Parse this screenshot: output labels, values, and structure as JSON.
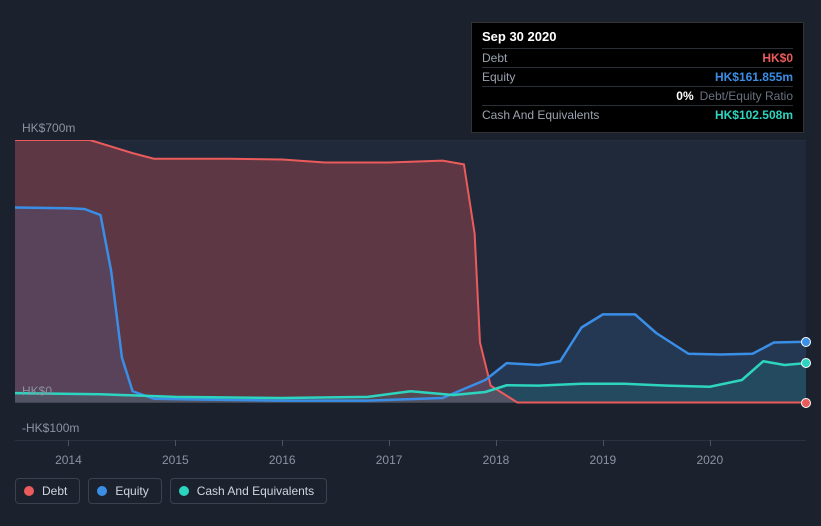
{
  "tooltip": {
    "date": "Sep 30 2020",
    "rows": [
      {
        "label": "Debt",
        "value": "HK$0",
        "color": "#eb5b5b"
      },
      {
        "label": "Equity",
        "value": "HK$161.855m",
        "color": "#3a8ee6"
      },
      {
        "label_ratio": "Debt/Equity Ratio",
        "value": "0%",
        "is_ratio": true
      },
      {
        "label": "Cash And Equivalents",
        "value": "HK$102.508m",
        "color": "#2dd4bf"
      }
    ]
  },
  "chart": {
    "type": "area-line",
    "background_color": "#1b222d",
    "plot_band_color": "#20293a",
    "grid_color": "#2a3240",
    "axis_label_color": "#8a93a0",
    "x": {
      "min": 2013.5,
      "max": 2020.9,
      "ticks": [
        2014,
        2015,
        2016,
        2017,
        2018,
        2019,
        2020
      ]
    },
    "y": {
      "min": -100,
      "max": 700,
      "ticks": [
        {
          "v": 700,
          "label": "HK$700m"
        },
        {
          "v": 0,
          "label": "HK$0"
        },
        {
          "v": -100,
          "label": "-HK$100m"
        }
      ],
      "bands": [
        {
          "from": 0,
          "to": 700,
          "fill": "#20293a"
        }
      ],
      "gridlines": [
        700,
        0
      ]
    },
    "series": [
      {
        "name": "Debt",
        "color": "#eb5b5b",
        "fill_opacity": 0.3,
        "line_width": 2,
        "points": [
          [
            2013.5,
            700
          ],
          [
            2014.2,
            700
          ],
          [
            2014.6,
            665
          ],
          [
            2014.8,
            650
          ],
          [
            2015.5,
            650
          ],
          [
            2016.0,
            648
          ],
          [
            2016.4,
            640
          ],
          [
            2017.0,
            640
          ],
          [
            2017.5,
            645
          ],
          [
            2017.7,
            635
          ],
          [
            2017.8,
            450
          ],
          [
            2017.85,
            160
          ],
          [
            2017.95,
            45
          ],
          [
            2018.2,
            0
          ],
          [
            2020.9,
            0
          ]
        ]
      },
      {
        "name": "Equity",
        "color": "#3a8ee6",
        "fill_opacity": 0.15,
        "line_width": 2.5,
        "points": [
          [
            2013.5,
            520
          ],
          [
            2014.0,
            518
          ],
          [
            2014.15,
            516
          ],
          [
            2014.3,
            500
          ],
          [
            2014.4,
            350
          ],
          [
            2014.5,
            120
          ],
          [
            2014.6,
            30
          ],
          [
            2014.8,
            10
          ],
          [
            2015.2,
            8
          ],
          [
            2016.0,
            5
          ],
          [
            2016.8,
            5
          ],
          [
            2017.5,
            12
          ],
          [
            2017.9,
            60
          ],
          [
            2018.1,
            105
          ],
          [
            2018.4,
            100
          ],
          [
            2018.6,
            110
          ],
          [
            2018.8,
            200
          ],
          [
            2019.0,
            235
          ],
          [
            2019.3,
            235
          ],
          [
            2019.5,
            185
          ],
          [
            2019.8,
            130
          ],
          [
            2020.1,
            128
          ],
          [
            2020.4,
            130
          ],
          [
            2020.6,
            160
          ],
          [
            2020.9,
            162
          ]
        ]
      },
      {
        "name": "Cash And Equivalents",
        "color": "#2dd4bf",
        "fill_opacity": 0.12,
        "line_width": 2.5,
        "points": [
          [
            2013.5,
            25
          ],
          [
            2014.3,
            22
          ],
          [
            2015.0,
            15
          ],
          [
            2016.0,
            12
          ],
          [
            2016.8,
            15
          ],
          [
            2017.2,
            30
          ],
          [
            2017.6,
            20
          ],
          [
            2017.9,
            28
          ],
          [
            2018.1,
            46
          ],
          [
            2018.4,
            45
          ],
          [
            2018.8,
            50
          ],
          [
            2019.2,
            50
          ],
          [
            2019.6,
            45
          ],
          [
            2020.0,
            42
          ],
          [
            2020.3,
            60
          ],
          [
            2020.5,
            110
          ],
          [
            2020.7,
            100
          ],
          [
            2020.9,
            105
          ]
        ]
      }
    ],
    "end_markers": [
      {
        "x": 2020.9,
        "y": 0,
        "color": "#eb5b5b"
      },
      {
        "x": 2020.9,
        "y": 162,
        "color": "#3a8ee6"
      },
      {
        "x": 2020.9,
        "y": 105,
        "color": "#2dd4bf"
      }
    ]
  },
  "legend": [
    {
      "label": "Debt",
      "color": "#eb5b5b"
    },
    {
      "label": "Equity",
      "color": "#3a8ee6"
    },
    {
      "label": "Cash And Equivalents",
      "color": "#2dd4bf"
    }
  ]
}
